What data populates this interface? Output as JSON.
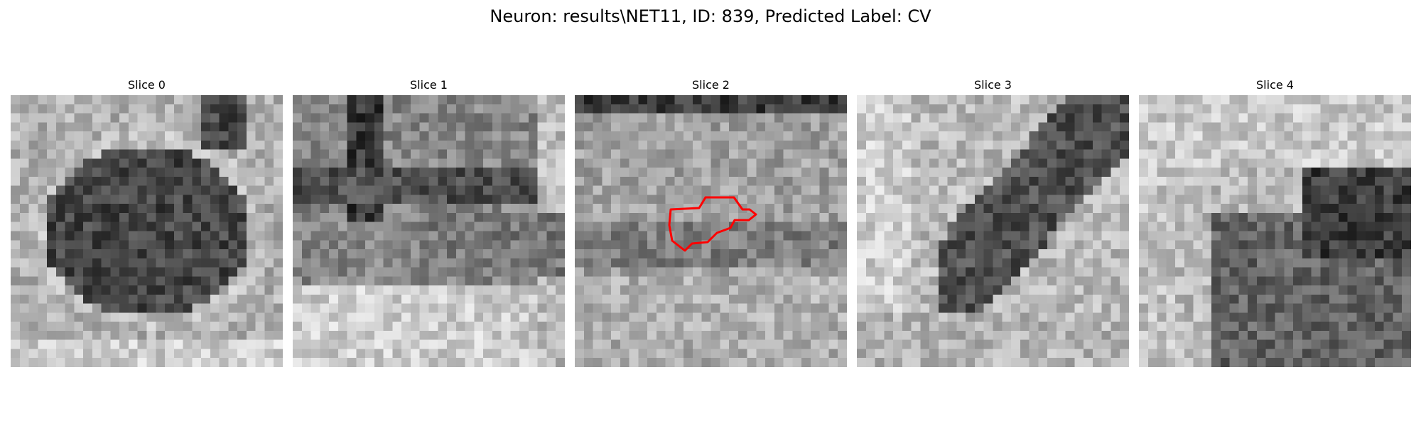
{
  "figure": {
    "title": "Neuron: results\\NET11, ID: 839, Predicted Label: CV"
  },
  "image_grid": {
    "cols": 30,
    "rows": 30
  },
  "slices": [
    {
      "label": "Slice 0",
      "pattern": "round-dark-cell"
    },
    {
      "label": "Slice 1",
      "pattern": "dark-top-bright-bottom"
    },
    {
      "label": "Slice 2",
      "pattern": "noisy-uniform"
    },
    {
      "label": "Slice 3",
      "pattern": "dark-diagonal"
    },
    {
      "label": "Slice 4",
      "pattern": "dark-lower-right"
    }
  ],
  "contour": {
    "slice": "Slice 2",
    "color": "#ff0000"
  }
}
